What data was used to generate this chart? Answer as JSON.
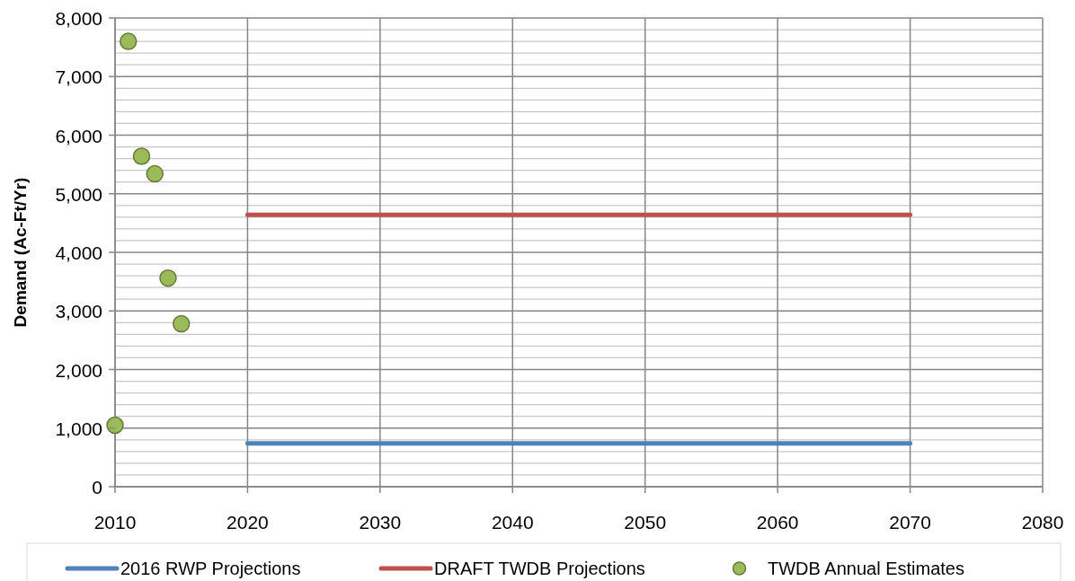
{
  "chart_data": {
    "type": "line",
    "ylabel": "Demand (Ac-Ft/Yr)",
    "xlim": [
      2010,
      2080
    ],
    "xticks": [
      2010,
      2020,
      2030,
      2040,
      2050,
      2060,
      2070,
      2080
    ],
    "ylim": [
      0,
      8000
    ],
    "yticks": [
      0,
      {
        "value": 200,
        "label": null
      },
      {
        "value": 400,
        "label": null
      },
      {
        "value": 600,
        "label": null
      },
      {
        "value": 800,
        "label": null
      },
      {
        "value": 1000,
        "label": "1,000"
      },
      {
        "value": 1200,
        "label": null
      },
      {
        "value": 1400,
        "label": null
      },
      {
        "value": 1600,
        "label": null
      },
      {
        "value": 1800,
        "label": null
      },
      {
        "value": 2000,
        "label": "2,000"
      },
      {
        "value": 2200,
        "label": null
      },
      {
        "value": 2400,
        "label": null
      },
      {
        "value": 2600,
        "label": null
      },
      {
        "value": 2800,
        "label": null
      },
      {
        "value": 3000,
        "label": "3,000"
      },
      {
        "value": 3200,
        "label": null
      },
      {
        "value": 3400,
        "label": null
      },
      {
        "value": 3600,
        "label": null
      },
      {
        "value": 3800,
        "label": null
      },
      {
        "value": 4000,
        "label": "4,000"
      },
      {
        "value": 4200,
        "label": null
      },
      {
        "value": 4400,
        "label": null
      },
      {
        "value": 4600,
        "label": null
      },
      {
        "value": 4800,
        "label": null
      },
      {
        "value": 5000,
        "label": "5,000"
      },
      {
        "value": 5200,
        "label": null
      },
      {
        "value": 5400,
        "label": null
      },
      {
        "value": 5600,
        "label": null
      },
      {
        "value": 5800,
        "label": null
      },
      {
        "value": 6000,
        "label": "6,000"
      },
      {
        "value": 6200,
        "label": null
      },
      {
        "value": 6400,
        "label": null
      },
      {
        "value": 6600,
        "label": null
      },
      {
        "value": 6800,
        "label": null
      },
      {
        "value": 7000,
        "label": "7,000"
      },
      {
        "value": 7200,
        "label": null
      },
      {
        "value": 7400,
        "label": null
      },
      {
        "value": 7600,
        "label": null
      },
      {
        "value": 7800,
        "label": null
      },
      {
        "value": 8000,
        "label": "8,000"
      }
    ],
    "grid": true,
    "legend": "bottom",
    "series": [
      {
        "name": "2016 RWP Projections",
        "color": "#4f81bd",
        "x": [
          2020,
          2030,
          2040,
          2050,
          2060,
          2070
        ],
        "values": [
          740,
          740,
          740,
          740,
          740,
          740
        ]
      },
      {
        "name": "DRAFT TWDB Projections",
        "color": "#c0504d",
        "x": [
          2020,
          2030,
          2040,
          2050,
          2060,
          2070
        ],
        "values": [
          4640,
          4640,
          4640,
          4640,
          4640,
          4640
        ]
      },
      {
        "name": "TWDB Annual Estimates",
        "type": "scatter",
        "marker": "circle",
        "color": "#9bbb59",
        "x": [
          2010,
          2011,
          2012,
          2013,
          2014,
          2015
        ],
        "values": [
          1050,
          7600,
          5640,
          5340,
          3560,
          2780
        ]
      }
    ]
  }
}
